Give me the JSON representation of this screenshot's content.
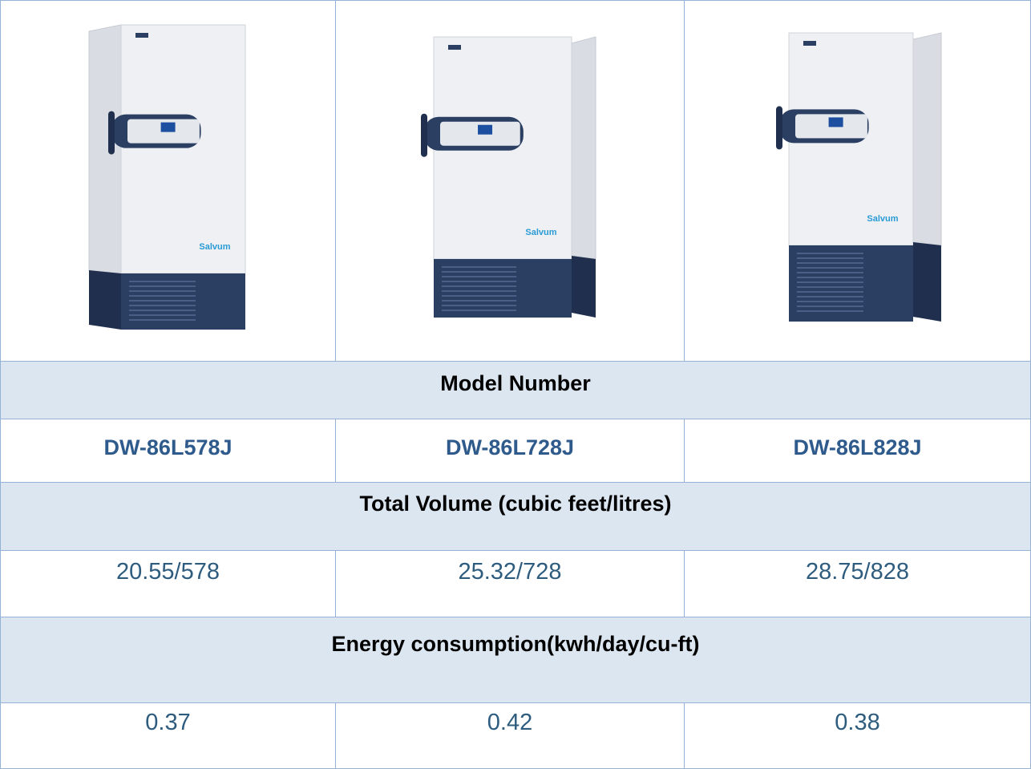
{
  "brand": "Salvum",
  "sections": [
    {
      "heading": "Model Number",
      "values": [
        "DW-86L578J",
        "DW-86L728J",
        "DW-86L828J"
      ]
    },
    {
      "heading": "Total Volume (cubic feet/litres)",
      "values": [
        "20.55/578",
        "25.32/728",
        "28.75/828"
      ]
    },
    {
      "heading": "Energy consumption(kwh/day/cu-ft)",
      "values": [
        "0.37",
        "0.42",
        "0.38"
      ]
    }
  ]
}
